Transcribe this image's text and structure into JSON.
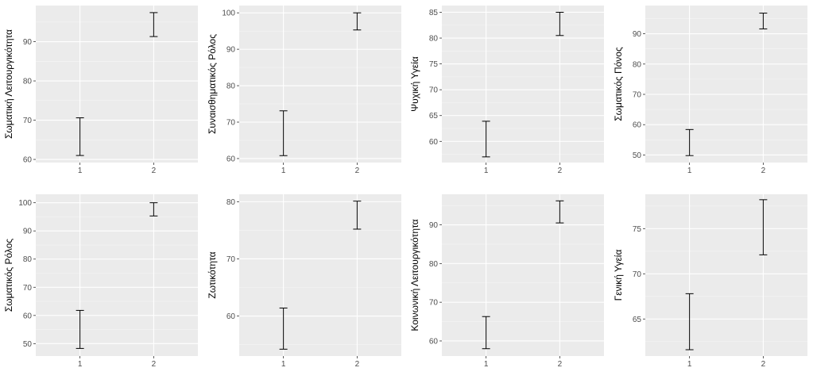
{
  "chart_data": [
    {
      "type": "errorbar",
      "title": "",
      "xlabel": "",
      "ylabel": "Σωματική Λειτουργικότητα",
      "categories": [
        "1",
        "2"
      ],
      "lower": [
        61.0,
        91.3
      ],
      "upper": [
        70.6,
        97.4
      ],
      "yticks": [
        60,
        70,
        80,
        90
      ],
      "ylim": [
        59.2,
        99.2
      ],
      "grid": true
    },
    {
      "type": "errorbar",
      "title": "",
      "xlabel": "",
      "ylabel": "Συναισθηματικός Ρόλος",
      "categories": [
        "1",
        "2"
      ],
      "lower": [
        60.8,
        95.3
      ],
      "upper": [
        73.1,
        100.0
      ],
      "yticks": [
        60,
        70,
        80,
        90,
        100
      ],
      "ylim": [
        58.9,
        102.0
      ],
      "grid": true
    },
    {
      "type": "errorbar",
      "title": "",
      "xlabel": "",
      "ylabel": "Ψυχική Υγεία",
      "categories": [
        "1",
        "2"
      ],
      "lower": [
        57.0,
        80.5
      ],
      "upper": [
        63.9,
        85.0
      ],
      "yticks": [
        60,
        65,
        70,
        75,
        80,
        85
      ],
      "ylim": [
        55.9,
        86.3
      ],
      "grid": true
    },
    {
      "type": "errorbar",
      "title": "",
      "xlabel": "",
      "ylabel": "Σωματικός Πόνος",
      "categories": [
        "1",
        "2"
      ],
      "lower": [
        49.8,
        91.6
      ],
      "upper": [
        58.4,
        96.8
      ],
      "yticks": [
        50,
        60,
        70,
        80,
        90
      ],
      "ylim": [
        47.5,
        99.3
      ],
      "grid": true
    },
    {
      "type": "errorbar",
      "title": "",
      "xlabel": "",
      "ylabel": "Σωματικός Ρόλος",
      "categories": [
        "1",
        "2"
      ],
      "lower": [
        48.3,
        95.3
      ],
      "upper": [
        61.8,
        100.0
      ],
      "yticks": [
        50,
        60,
        70,
        80,
        90,
        100
      ],
      "ylim": [
        45.6,
        103.0
      ],
      "grid": true
    },
    {
      "type": "errorbar",
      "title": "",
      "xlabel": "",
      "ylabel": "Ζωτικότητα",
      "categories": [
        "1",
        "2"
      ],
      "lower": [
        54.2,
        75.2
      ],
      "upper": [
        61.4,
        80.1
      ],
      "yticks": [
        60,
        70,
        80
      ],
      "ylim": [
        53.0,
        81.3
      ],
      "grid": true
    },
    {
      "type": "errorbar",
      "title": "",
      "xlabel": "",
      "ylabel": "Κοινωνική Λειτουργικότητα",
      "categories": [
        "1",
        "2"
      ],
      "lower": [
        58.0,
        90.5
      ],
      "upper": [
        66.3,
        96.2
      ],
      "yticks": [
        60,
        70,
        80,
        90
      ],
      "ylim": [
        56.1,
        97.9
      ],
      "grid": true
    },
    {
      "type": "errorbar",
      "title": "",
      "xlabel": "",
      "ylabel": "Γενική Υγεία",
      "categories": [
        "1",
        "2"
      ],
      "lower": [
        61.6,
        72.1
      ],
      "upper": [
        67.8,
        78.2
      ],
      "yticks": [
        65,
        70,
        75
      ],
      "ylim": [
        60.9,
        78.8
      ],
      "grid": true
    }
  ]
}
